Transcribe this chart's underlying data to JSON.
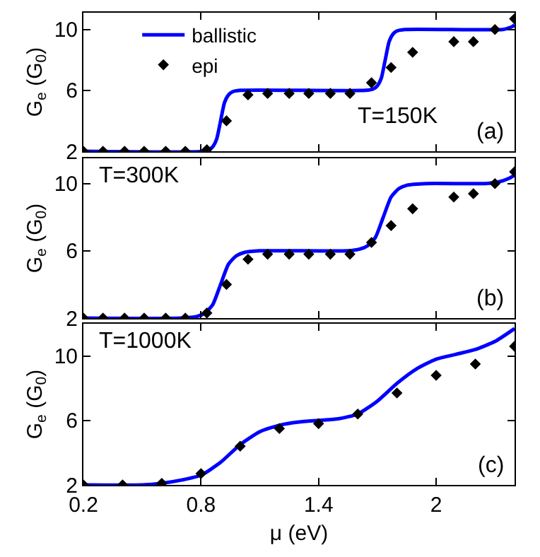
{
  "chart_data": [
    {
      "type": "line",
      "xlim": [
        0.2,
        2.4
      ],
      "xticks": [
        {
          "value": 0.2,
          "label": null
        },
        {
          "value": 0.8,
          "label": null
        },
        {
          "value": 1.4,
          "label": null
        },
        {
          "value": 2,
          "label": null
        }
      ],
      "ylim": [
        2,
        11.1
      ],
      "yticks": [
        2,
        6,
        10
      ],
      "ylabel": "G$_{e}$ (G$_{0}$)",
      "tick_labels": "y",
      "legend": "top left",
      "annotations": [
        "T=150K",
        "(a)"
      ],
      "series": [
        {
          "name": "ballistic",
          "type": "line",
          "color": "#0000ff",
          "line_style": "solid",
          "marker": "none",
          "x": [
            0.2,
            0.82,
            0.84,
            0.86,
            0.88,
            0.9,
            0.92,
            0.94,
            0.96,
            1.0,
            1.64,
            1.68,
            1.7,
            1.72,
            1.74,
            1.76,
            1.78,
            1.8,
            1.84,
            2.34,
            2.37,
            2.39,
            2.4
          ],
          "values": [
            2,
            2,
            2.1,
            2.3,
            2.8,
            4,
            5.2,
            5.7,
            5.9,
            6,
            6,
            6.1,
            6.3,
            6.8,
            8,
            9.2,
            9.7,
            9.9,
            10,
            10,
            10.1,
            10.2,
            10.3
          ]
        },
        {
          "name": "epi",
          "type": "scatter",
          "color": "#000000",
          "marker": "diamond",
          "x": [
            0.2,
            0.3,
            0.41,
            0.51,
            0.62,
            0.72,
            0.83,
            0.93,
            1.04,
            1.14,
            1.25,
            1.35,
            1.46,
            1.56,
            1.67,
            1.77,
            1.88,
            2.09,
            2.19,
            2.3,
            2.4
          ],
          "values": [
            2,
            2,
            2,
            2,
            2,
            2,
            2.1,
            4,
            5.7,
            5.8,
            5.8,
            5.8,
            5.8,
            5.8,
            6.5,
            7.5,
            8.5,
            9.2,
            9.2,
            10,
            10.7
          ]
        }
      ]
    },
    {
      "type": "line",
      "xlim": [
        0.2,
        2.4
      ],
      "xticks": [
        {
          "value": 0.2,
          "label": null
        },
        {
          "value": 0.8,
          "label": null
        },
        {
          "value": 1.4,
          "label": null
        },
        {
          "value": 2,
          "label": null
        }
      ],
      "ylim": [
        2,
        11.5
      ],
      "yticks": [
        2,
        6,
        10
      ],
      "ylabel": "G$_{e}$ (G$_{0}$)",
      "tick_labels": "y",
      "legend": false,
      "annotations": [
        "T=300K",
        "(b)"
      ],
      "series": [
        {
          "type": "line",
          "color": "#0000ff",
          "line_style": "solid",
          "marker": "none",
          "x": [
            0.2,
            0.7,
            0.78,
            0.82,
            0.86,
            0.9,
            0.94,
            0.98,
            1.02,
            1.1,
            1.55,
            1.61,
            1.65,
            1.69,
            1.73,
            1.77,
            1.81,
            1.85,
            1.95,
            2.25,
            2.32,
            2.37,
            2.4
          ],
          "values": [
            2,
            2,
            2.1,
            2.3,
            2.8,
            4,
            5.2,
            5.7,
            5.9,
            6,
            6,
            6.1,
            6.3,
            6.8,
            8,
            9.2,
            9.7,
            9.9,
            10,
            10,
            10.1,
            10.3,
            10.5
          ]
        },
        {
          "type": "scatter",
          "color": "#000000",
          "marker": "diamond",
          "x": [
            0.2,
            0.3,
            0.41,
            0.51,
            0.62,
            0.72,
            0.83,
            0.93,
            1.04,
            1.14,
            1.25,
            1.35,
            1.46,
            1.56,
            1.67,
            1.77,
            1.88,
            2.09,
            2.19,
            2.3,
            2.4
          ],
          "values": [
            2,
            2,
            2,
            2,
            2,
            2,
            2.3,
            4,
            5.5,
            5.8,
            5.8,
            5.8,
            5.8,
            5.8,
            6.5,
            7.5,
            8.5,
            9.2,
            9.4,
            10,
            10.7
          ]
        }
      ]
    },
    {
      "type": "line",
      "xlim": [
        0.2,
        2.4
      ],
      "xticks": [
        0.2,
        0.8,
        1.4,
        2
      ],
      "ylim": [
        2,
        12
      ],
      "yticks": [
        2,
        6,
        10
      ],
      "xlabel": "μ (eV)",
      "ylabel": "G$_{e}$ (G$_{0}$)",
      "legend": false,
      "annotations": [
        "T=1000K",
        "(c)"
      ],
      "series": [
        {
          "type": "line",
          "color": "#0000ff",
          "line_style": "solid",
          "marker": "none",
          "x": [
            0.2,
            0.5,
            0.6,
            0.7,
            0.8,
            0.9,
            1.0,
            1.1,
            1.2,
            1.3,
            1.4,
            1.5,
            1.6,
            1.7,
            1.8,
            1.9,
            2.0,
            2.1,
            2.2,
            2.3,
            2.4
          ],
          "values": [
            2,
            2,
            2.1,
            2.3,
            2.6,
            3.4,
            4.5,
            5.3,
            5.7,
            5.9,
            6,
            6.1,
            6.4,
            7.2,
            8.3,
            9.2,
            9.8,
            10.1,
            10.4,
            10.9,
            11.7
          ]
        },
        {
          "type": "scatter",
          "color": "#000000",
          "marker": "diamond",
          "x": [
            0.2,
            0.4,
            0.6,
            0.8,
            1.0,
            1.2,
            1.4,
            1.6,
            1.8,
            2.0,
            2.2,
            2.4
          ],
          "values": [
            2,
            2,
            2.1,
            2.7,
            4.4,
            5.5,
            5.8,
            6.4,
            7.7,
            8.8,
            9.5,
            10.6
          ]
        }
      ]
    }
  ]
}
